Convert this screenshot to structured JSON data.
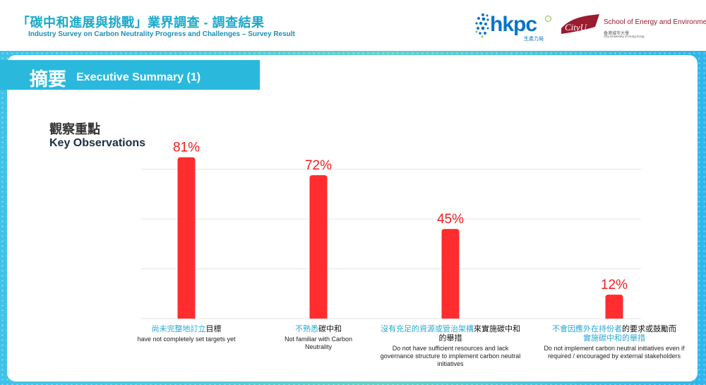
{
  "header": {
    "title": "「碳中和進展與挑戰」業界調查 - 調查結果",
    "subtitle": "Industry Survey on Carbon Neutrality Progress and Challenges – Survey Result"
  },
  "logos": {
    "hkpc_word": "hkpc",
    "hkpc_cn": "生產力局",
    "cityu_badge": "CityU",
    "cityu_school": "School of Energy and Environment",
    "cityu_name_cn": "香港城市大學",
    "cityu_name_en": "City University of Hong Kong"
  },
  "section": {
    "title_cn": "摘要",
    "title_en": "Executive Summary (1)"
  },
  "observations": {
    "title_cn": "觀察重點",
    "title_en": "Key Observations"
  },
  "colors": {
    "bar": "#ff2d2d",
    "value_label": "#f51c1c",
    "highlight": "#28a9d4",
    "accent": "#2ab9dd"
  },
  "chart_data": {
    "type": "bar",
    "categories": [
      "尚未完整地訂立目標 have not completely set targets yet",
      "不熟悉碳中和 Not familiar with Carbon Neutrality",
      "沒有充足的資源或管治架構來實施碳中和的舉措 Do not have sufficient resources and lack governance structure to implement carbon neutral initiatives",
      "不會因應外在持份者的要求或鼓勵而實施碳中和的舉措 Do not implement carbon neutral initiatives even if required / encouraged by external stakeholders"
    ],
    "values": [
      81,
      72,
      45,
      12
    ],
    "value_labels": [
      "81%",
      "72%",
      "45%",
      "12%"
    ],
    "unit": "%",
    "ylim": [
      0,
      100
    ],
    "grid": true,
    "legend": "none",
    "category_labels": [
      {
        "cn_highlight": "尚未完整地訂立",
        "cn_rest": "目標",
        "en": "have not completely set targets yet"
      },
      {
        "cn_highlight": "不熟悉",
        "cn_rest": "碳中和",
        "en": "Not familiar with Carbon Neutrality"
      },
      {
        "cn_highlight": "沒有充足的資源或管治架構",
        "cn_rest": "來實施碳中和的舉措",
        "en": "Do not have sufficient resources and lack governance structure to implement carbon neutral initiatives"
      },
      {
        "cn_pre": "",
        "cn_highlight": "不會因應外在持份者",
        "cn_rest": "的要求或鼓勵而",
        "cn_highlight2": "實施碳中和的舉措",
        "en": "Do not implement carbon neutral initiatives even if required / encouraged by external stakeholders"
      }
    ]
  }
}
